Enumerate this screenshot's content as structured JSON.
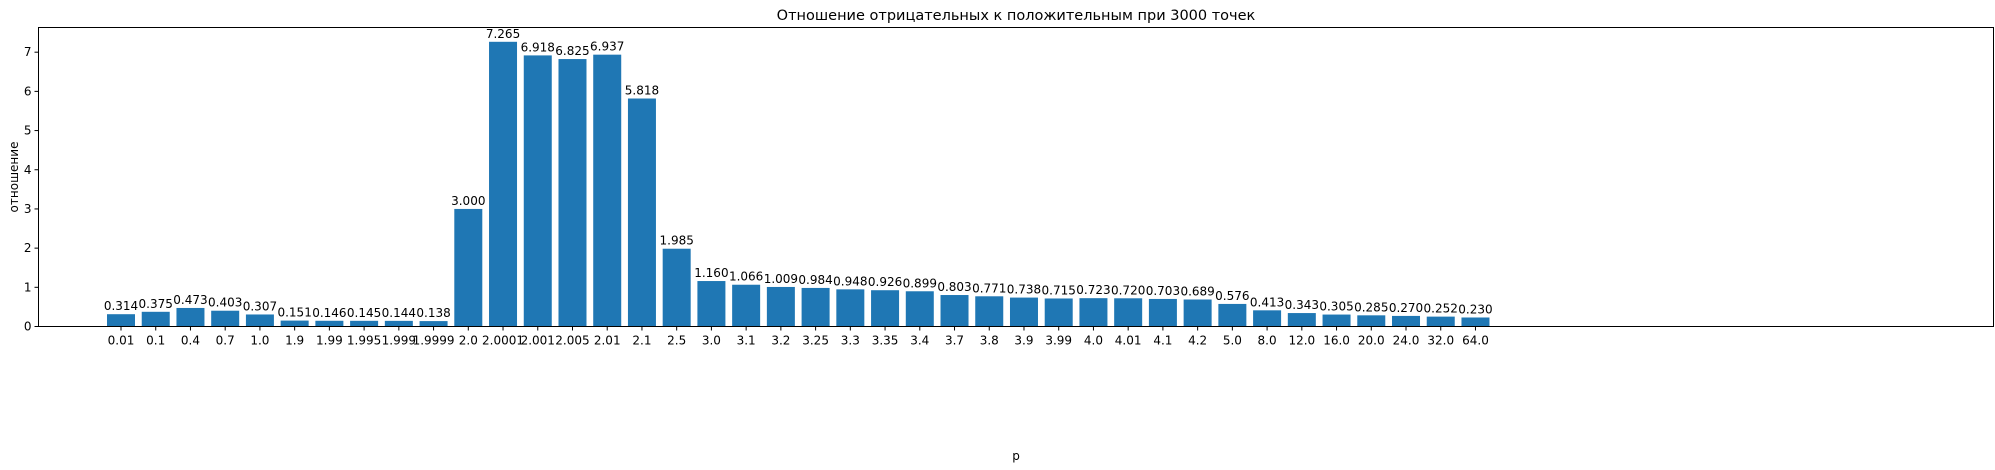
{
  "chart_data": {
    "type": "bar",
    "title": "Отношение отрицательных к положительным при 3000 точек",
    "xlabel": "p",
    "ylabel": "отношение",
    "categories": [
      "0.01",
      "0.1",
      "0.4",
      "0.7",
      "1.0",
      "1.9",
      "1.99",
      "1.995",
      "1.999",
      "1.9999",
      "2.0",
      "2.0001",
      "2.001",
      "2.005",
      "2.01",
      "2.1",
      "2.5",
      "3.0",
      "3.1",
      "3.2",
      "3.25",
      "3.3",
      "3.35",
      "3.4",
      "3.7",
      "3.8",
      "3.9",
      "3.99",
      "4.0",
      "4.01",
      "4.1",
      "4.2",
      "5.0",
      "8.0",
      "12.0",
      "16.0",
      "20.0",
      "24.0",
      "32.0",
      "64.0"
    ],
    "values": [
      0.314,
      0.375,
      0.473,
      0.403,
      0.307,
      0.151,
      0.146,
      0.145,
      0.144,
      0.138,
      3.0,
      7.265,
      6.918,
      6.825,
      6.937,
      5.818,
      1.985,
      1.16,
      1.066,
      1.009,
      0.984,
      0.948,
      0.926,
      0.899,
      0.803,
      0.771,
      0.738,
      0.715,
      0.723,
      0.72,
      0.703,
      0.689,
      0.576,
      0.413,
      0.343,
      0.305,
      0.285,
      0.27,
      0.252,
      0.23
    ],
    "value_labels": [
      "0.314",
      "0.375",
      "0.473",
      "0.403",
      "0.307",
      "0.151",
      "0.146",
      "0.145",
      "0.144",
      "0.138",
      "3.000",
      "7.265",
      "6.918",
      "6.825",
      "6.937",
      "5.818",
      "1.985",
      "1.160",
      "1.066",
      "1.009",
      "0.984",
      "0.948",
      "0.926",
      "0.899",
      "0.803",
      "0.771",
      "0.738",
      "0.715",
      "0.723",
      "0.720",
      "0.703",
      "0.689",
      "0.576",
      "0.413",
      "0.343",
      "0.305",
      "0.285",
      "0.270",
      "0.252",
      "0.230"
    ],
    "yticks": [
      "0",
      "1",
      "2",
      "3",
      "4",
      "5",
      "6",
      "7"
    ],
    "ylim": [
      0,
      7.63
    ],
    "grid": false,
    "bar_color": "#1f77b4"
  }
}
